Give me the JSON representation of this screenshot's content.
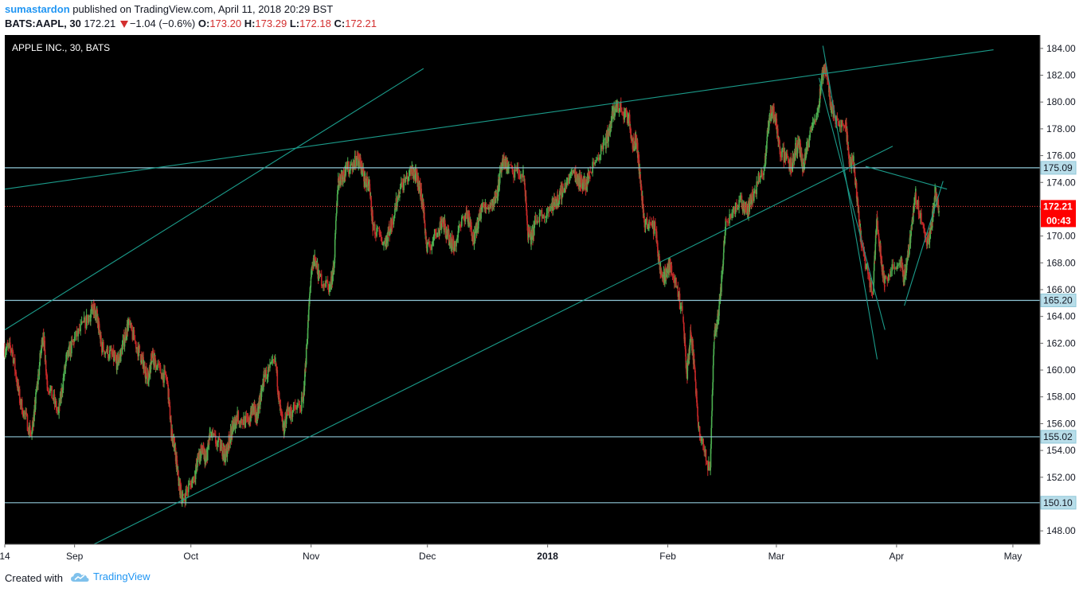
{
  "header": {
    "username": "sumastardon",
    "published_text": "published on TradingView.com, April 11, 2018 20:29 BST",
    "symbol": "BATS:AAPL, 30",
    "last": "172.21",
    "change": "−1.04 (−0.6%)",
    "o_label": "O:",
    "o_value": "173.20",
    "h_label": "H:",
    "h_value": "173.29",
    "l_label": "L:",
    "l_value": "172.18",
    "c_label": "C:",
    "c_value": "172.21"
  },
  "footer": {
    "created_with": "Created with",
    "brand": "TradingView"
  },
  "colors": {
    "background": "#000000",
    "bull": "#4caf50",
    "bear": "#c62828",
    "trendline": "#1b9b8a",
    "hline": "#8fc7d8",
    "price_line": "#ff3b3b",
    "axis_text": "#131722"
  },
  "chart_data": {
    "type": "candlestick",
    "title": "APPLE INC., 30, BATS",
    "ylim": [
      147,
      185
    ],
    "y_ticks": [
      "148.00",
      "150.00",
      "152.00",
      "154.00",
      "156.00",
      "158.00",
      "160.00",
      "162.00",
      "164.00",
      "166.00",
      "168.00",
      "170.00",
      "172.00",
      "174.00",
      "176.00",
      "178.00",
      "180.00",
      "182.00",
      "184.00"
    ],
    "x_labels": [
      {
        "label": "14",
        "date": "2017-08-14",
        "bold": false
      },
      {
        "label": "Sep",
        "date": "2017-09-01",
        "bold": false
      },
      {
        "label": "Oct",
        "date": "2017-10-01",
        "bold": false
      },
      {
        "label": "Nov",
        "date": "2017-11-01",
        "bold": false
      },
      {
        "label": "Dec",
        "date": "2017-12-01",
        "bold": false
      },
      {
        "label": "2018",
        "date": "2018-01-01",
        "bold": true
      },
      {
        "label": "Feb",
        "date": "2018-02-01",
        "bold": false
      },
      {
        "label": "Mar",
        "date": "2018-03-01",
        "bold": false
      },
      {
        "label": "Apr",
        "date": "2018-04-01",
        "bold": false
      },
      {
        "label": "May",
        "date": "2018-05-01",
        "bold": false
      }
    ],
    "x_range": [
      "2017-08-14",
      "2018-05-08"
    ],
    "price_tags": [
      {
        "value": 175.09,
        "label": "175.09"
      },
      {
        "value": 165.2,
        "label": "165.20"
      },
      {
        "value": 155.02,
        "label": "155.02"
      },
      {
        "value": 150.1,
        "label": "150.10"
      }
    ],
    "last_price": {
      "value": 172.21,
      "label": "172.21",
      "countdown": "00:43"
    },
    "horizontal_lines": [
      175.09,
      165.2,
      155.02,
      150.1
    ],
    "trendlines": [
      {
        "from": [
          "2017-08-14",
          163.0
        ],
        "to": [
          "2017-11-30",
          182.5
        ]
      },
      {
        "from": [
          "2017-08-14",
          173.5
        ],
        "to": [
          "2018-04-26",
          183.9
        ]
      },
      {
        "from": [
          "2017-09-06",
          147.0
        ],
        "to": [
          "2018-03-31",
          176.7
        ]
      },
      {
        "from": [
          "2018-03-13",
          184.2
        ],
        "to": [
          "2018-03-27",
          160.8
        ]
      },
      {
        "from": [
          "2018-03-12",
          181.8
        ],
        "to": [
          "2018-03-29",
          163.0
        ]
      },
      {
        "from": [
          "2018-03-24",
          175.2
        ],
        "to": [
          "2018-04-14",
          173.5
        ]
      },
      {
        "from": [
          "2018-04-03",
          164.8
        ],
        "to": [
          "2018-04-13",
          174.1
        ]
      }
    ],
    "daily": [
      [
        "2017-08-14",
        161.6
      ],
      [
        "2017-08-16",
        157.8
      ],
      [
        "2017-08-18",
        155.2
      ],
      [
        "2017-08-21",
        157.5
      ],
      [
        "2017-08-22",
        162.8
      ],
      [
        "2017-08-24",
        159.2
      ],
      [
        "2017-08-25",
        156.8
      ],
      [
        "2017-08-28",
        160.8
      ],
      [
        "2017-08-30",
        162.2
      ],
      [
        "2017-09-01",
        164.0
      ],
      [
        "2017-09-05",
        164.8
      ],
      [
        "2017-09-06",
        163.8
      ],
      [
        "2017-09-07",
        161.8
      ],
      [
        "2017-09-08",
        161.0
      ],
      [
        "2017-09-11",
        160.5
      ],
      [
        "2017-09-12",
        161.2
      ],
      [
        "2017-09-13",
        163.5
      ],
      [
        "2017-09-15",
        161.2
      ],
      [
        "2017-09-18",
        160.2
      ],
      [
        "2017-09-19",
        159.4
      ],
      [
        "2017-09-20",
        161.0
      ],
      [
        "2017-09-21",
        160.5
      ],
      [
        "2017-09-22",
        159.2
      ],
      [
        "2017-09-25",
        155.5
      ],
      [
        "2017-09-26",
        154.0
      ],
      [
        "2017-09-27",
        151.5
      ],
      [
        "2017-09-28",
        150.3
      ],
      [
        "2017-09-29",
        152.0
      ],
      [
        "2017-10-02",
        153.5
      ],
      [
        "2017-10-03",
        154.0
      ],
      [
        "2017-10-04",
        153.2
      ],
      [
        "2017-10-05",
        155.2
      ],
      [
        "2017-10-06",
        154.2
      ],
      [
        "2017-10-09",
        153.6
      ],
      [
        "2017-10-10",
        154.8
      ],
      [
        "2017-10-11",
        155.8
      ],
      [
        "2017-10-12",
        156.5
      ],
      [
        "2017-10-13",
        156.0
      ],
      [
        "2017-10-16",
        157.2
      ],
      [
        "2017-10-17",
        156.5
      ],
      [
        "2017-10-18",
        157.8
      ],
      [
        "2017-10-19",
        159.5
      ],
      [
        "2017-10-20",
        160.5
      ],
      [
        "2017-10-23",
        157.2
      ],
      [
        "2017-10-24",
        155.5
      ],
      [
        "2017-10-25",
        157.0
      ],
      [
        "2017-10-26",
        156.8
      ],
      [
        "2017-10-27",
        157.5
      ],
      [
        "2017-10-30",
        162.0
      ],
      [
        "2017-10-31",
        166.8
      ],
      [
        "2017-11-01",
        168.5
      ],
      [
        "2017-11-02",
        167.0
      ],
      [
        "2017-11-03",
        166.2
      ],
      [
        "2017-11-06",
        167.8
      ],
      [
        "2017-11-07",
        174.0
      ],
      [
        "2017-11-08",
        174.5
      ],
      [
        "2017-11-09",
        174.8
      ],
      [
        "2017-11-10",
        175.8
      ],
      [
        "2017-11-13",
        175.2
      ],
      [
        "2017-11-14",
        174.2
      ],
      [
        "2017-11-15",
        173.8
      ],
      [
        "2017-11-16",
        170.8
      ],
      [
        "2017-11-17",
        169.5
      ],
      [
        "2017-11-20",
        170.2
      ],
      [
        "2017-11-21",
        171.0
      ],
      [
        "2017-11-22",
        173.5
      ],
      [
        "2017-11-24",
        174.8
      ],
      [
        "2017-11-27",
        174.5
      ],
      [
        "2017-11-28",
        173.8
      ],
      [
        "2017-11-29",
        172.2
      ],
      [
        "2017-11-30",
        168.8
      ],
      [
        "2017-12-01",
        170.5
      ],
      [
        "2017-12-04",
        171.2
      ],
      [
        "2017-12-05",
        170.2
      ],
      [
        "2017-12-06",
        169.8
      ],
      [
        "2017-12-07",
        169.2
      ],
      [
        "2017-12-08",
        171.8
      ],
      [
        "2017-12-11",
        171.0
      ],
      [
        "2017-12-12",
        169.8
      ],
      [
        "2017-12-13",
        170.8
      ],
      [
        "2017-12-14",
        172.0
      ],
      [
        "2017-12-15",
        172.5
      ],
      [
        "2017-12-18",
        173.2
      ],
      [
        "2017-12-19",
        174.8
      ],
      [
        "2017-12-20",
        175.6
      ],
      [
        "2017-12-21",
        175.0
      ],
      [
        "2017-12-22",
        174.5
      ],
      [
        "2017-12-26",
        170.2
      ],
      [
        "2017-12-27",
        169.8
      ],
      [
        "2017-12-28",
        171.2
      ],
      [
        "2017-12-29",
        172.2
      ],
      [
        "2018-01-02",
        172.5
      ],
      [
        "2018-01-03",
        172.8
      ],
      [
        "2018-01-04",
        173.5
      ],
      [
        "2018-01-05",
        174.8
      ],
      [
        "2018-01-08",
        174.2
      ],
      [
        "2018-01-09",
        174.0
      ],
      [
        "2018-01-10",
        173.8
      ],
      [
        "2018-01-11",
        174.8
      ],
      [
        "2018-01-12",
        177.0
      ],
      [
        "2018-01-16",
        177.8
      ],
      [
        "2018-01-17",
        179.2
      ],
      [
        "2018-01-18",
        179.8
      ],
      [
        "2018-01-19",
        178.8
      ],
      [
        "2018-01-22",
        177.0
      ],
      [
        "2018-01-23",
        177.2
      ],
      [
        "2018-01-24",
        174.2
      ],
      [
        "2018-01-25",
        171.2
      ],
      [
        "2018-01-26",
        170.5
      ],
      [
        "2018-01-29",
        167.5
      ],
      [
        "2018-01-30",
        166.8
      ],
      [
        "2018-01-31",
        167.5
      ],
      [
        "2018-02-01",
        167.8
      ],
      [
        "2018-02-02",
        164.0
      ],
      [
        "2018-02-05",
        159.5
      ],
      [
        "2018-02-06",
        162.8
      ],
      [
        "2018-02-07",
        160.2
      ],
      [
        "2018-02-08",
        155.5
      ],
      [
        "2018-02-09",
        152.5
      ],
      [
        "2018-02-12",
        162.5
      ],
      [
        "2018-02-13",
        163.8
      ],
      [
        "2018-02-14",
        166.8
      ],
      [
        "2018-02-15",
        171.2
      ],
      [
        "2018-02-16",
        172.5
      ],
      [
        "2018-02-20",
        172.2
      ],
      [
        "2018-02-21",
        172.0
      ],
      [
        "2018-02-22",
        173.0
      ],
      [
        "2018-02-23",
        175.2
      ],
      [
        "2018-02-26",
        178.2
      ],
      [
        "2018-02-27",
        179.5
      ],
      [
        "2018-02-28",
        178.5
      ],
      [
        "2018-03-01",
        176.5
      ],
      [
        "2018-03-02",
        175.2
      ],
      [
        "2018-03-05",
        176.5
      ],
      [
        "2018-03-06",
        176.8
      ],
      [
        "2018-03-07",
        175.0
      ],
      [
        "2018-03-08",
        176.5
      ],
      [
        "2018-03-09",
        179.8
      ],
      [
        "2018-03-12",
        182.0
      ],
      [
        "2018-03-13",
        182.5
      ],
      [
        "2018-03-14",
        180.0
      ],
      [
        "2018-03-15",
        179.0
      ],
      [
        "2018-03-16",
        178.2
      ],
      [
        "2018-03-19",
        175.5
      ],
      [
        "2018-03-20",
        175.5
      ],
      [
        "2018-03-21",
        172.5
      ],
      [
        "2018-03-22",
        169.5
      ],
      [
        "2018-03-23",
        165.8
      ],
      [
        "2018-03-26",
        171.5
      ],
      [
        "2018-03-27",
        168.5
      ],
      [
        "2018-03-28",
        166.5
      ],
      [
        "2018-03-29",
        168.2
      ],
      [
        "2018-04-02",
        166.8
      ],
      [
        "2018-04-03",
        168.5
      ],
      [
        "2018-04-04",
        170.8
      ],
      [
        "2018-04-05",
        173.2
      ],
      [
        "2018-04-06",
        169.5
      ],
      [
        "2018-04-09",
        170.5
      ],
      [
        "2018-04-10",
        173.2
      ],
      [
        "2018-04-11",
        172.2
      ]
    ]
  }
}
